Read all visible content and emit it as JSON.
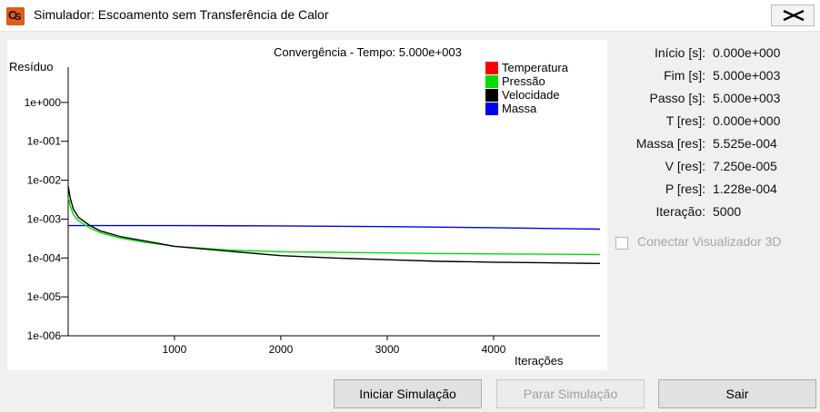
{
  "window": {
    "icon_label": "CS",
    "title": "Simulador: Escoamento sem Transferência de Calor",
    "close_icon": "close-x-icon"
  },
  "chart_data": {
    "type": "line",
    "title": "Convergência - Tempo: 5.000e+003",
    "ylabel": "Resíduo",
    "xlabel": "Iterações",
    "yscale": "log",
    "ylim": [
      1e-06,
      10
    ],
    "xlim": [
      1,
      5000
    ],
    "y_ticks": [
      "1e+000",
      "1e-001",
      "1e-002",
      "1e-003",
      "1e-004",
      "1e-005",
      "1e-006"
    ],
    "x_ticks": [
      "1000",
      "2000",
      "3000",
      "4000"
    ],
    "legend_position": "top-right",
    "grid": false,
    "series": [
      {
        "name": "Temperatura",
        "color": "#ff0000",
        "x": [],
        "y": []
      },
      {
        "name": "Pressão",
        "color": "#00dd00",
        "x": [
          1,
          10,
          20,
          50,
          100,
          200,
          300,
          500,
          700,
          1000,
          1500,
          2000,
          2500,
          3000,
          3500,
          4000,
          4500,
          5000
        ],
        "y": [
          0.0035,
          0.003,
          0.0022,
          0.0013,
          0.0009,
          0.0006,
          0.00045,
          0.00032,
          0.00026,
          0.0002,
          0.00016,
          0.000145,
          0.00014,
          0.000135,
          0.00013,
          0.000127,
          0.000125,
          0.0001228
        ]
      },
      {
        "name": "Velocidade",
        "color": "#000000",
        "x": [
          1,
          10,
          20,
          50,
          100,
          200,
          300,
          500,
          700,
          1000,
          1500,
          2000,
          2500,
          3000,
          3500,
          4000,
          4500,
          5000
        ],
        "y": [
          0.007,
          0.005,
          0.0035,
          0.0018,
          0.0011,
          0.0007,
          0.0005,
          0.00035,
          0.00028,
          0.0002,
          0.00015,
          0.000115,
          0.0001,
          9e-05,
          8.2e-05,
          7.8e-05,
          7.5e-05,
          7.25e-05
        ]
      },
      {
        "name": "Massa",
        "color": "#0000ee",
        "x": [
          1,
          1000,
          2000,
          3000,
          4000,
          5000
        ],
        "y": [
          0.00068,
          0.00068,
          0.00067,
          0.00064,
          0.0006,
          0.0005525
        ]
      }
    ]
  },
  "info": {
    "rows": [
      {
        "label": "Início [s]:",
        "value": "0.000e+000"
      },
      {
        "label": "Fim [s]:",
        "value": "5.000e+003"
      },
      {
        "label": "Passo [s]:",
        "value": "5.000e+003"
      },
      {
        "label": "T [res]:",
        "value": "0.000e+000"
      },
      {
        "label": "Massa [res]:",
        "value": "5.525e-004"
      },
      {
        "label": "V [res]:",
        "value": "7.250e-005"
      },
      {
        "label": "P [res]:",
        "value": "1.228e-004"
      },
      {
        "label": "Iteração:",
        "value": "5000"
      }
    ],
    "checkbox_label": "Conectar Visualizador 3D",
    "checkbox_checked": false
  },
  "buttons": {
    "start": "Iniciar Simulação",
    "stop": "Parar Simulação",
    "exit": "Sair"
  }
}
